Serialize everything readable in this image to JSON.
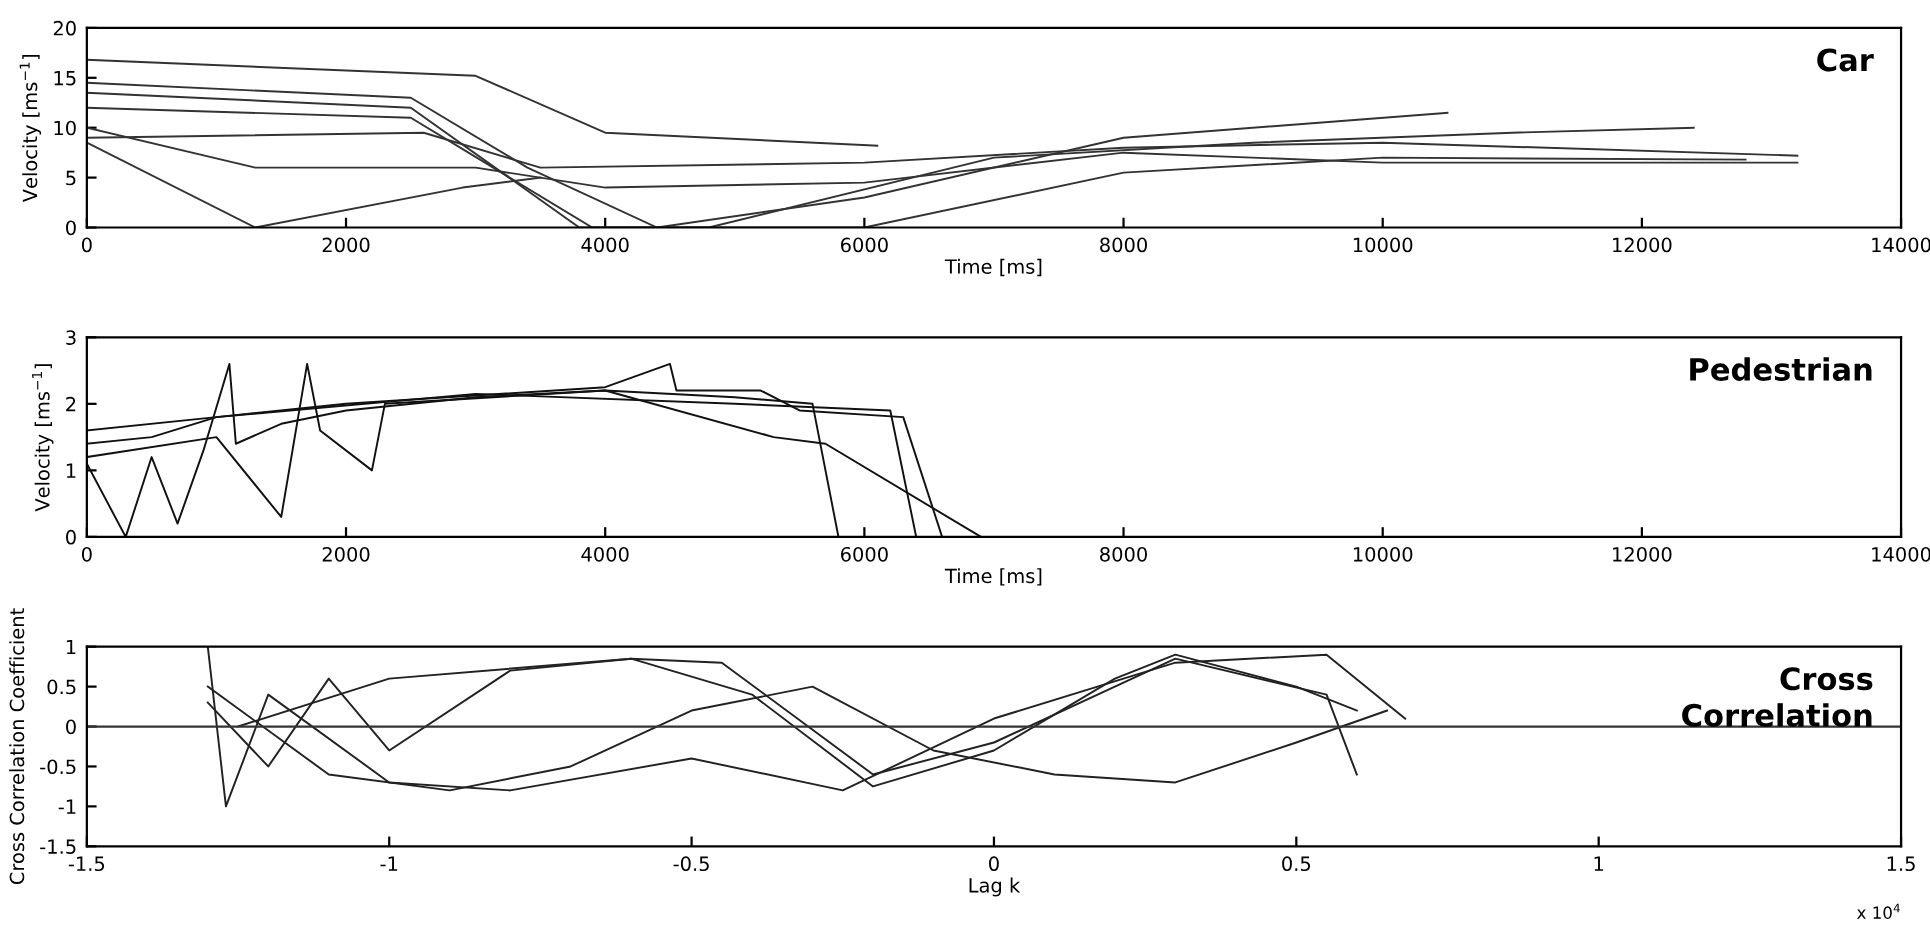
{
  "chart_data": [
    {
      "type": "line",
      "xlabel": "Time [ms]",
      "ylabel": "Velocity [ms$^{−1}$]",
      "annotations": [
        "Car"
      ],
      "xlim": [
        0,
        14000
      ],
      "ylim": [
        0,
        20
      ],
      "xticks": [
        0,
        2000,
        4000,
        6000,
        8000,
        10000,
        12000,
        14000
      ],
      "yticks": [
        0,
        5,
        10,
        15,
        20
      ],
      "grid": false,
      "legend": false,
      "marker": "none",
      "line_style": "solid",
      "series": [
        {
          "color": "#333333",
          "x": [
            0,
            3000,
            4000,
            6100
          ],
          "values": [
            16.8,
            15.2,
            9.5,
            8.2
          ]
        },
        {
          "color": "#333333",
          "x": [
            0,
            2500,
            3800,
            4800,
            7000,
            9000,
            11000,
            12400
          ],
          "values": [
            13.5,
            12,
            0,
            0,
            7,
            8.5,
            9.5,
            10
          ]
        },
        {
          "color": "#333333",
          "x": [
            0,
            2500,
            3900,
            6000,
            8000,
            10000,
            12800
          ],
          "values": [
            12,
            11,
            0,
            0,
            5.5,
            7,
            6.8
          ]
        },
        {
          "color": "#333333",
          "x": [
            0,
            1300,
            2900,
            3500
          ],
          "values": [
            8.5,
            0,
            4,
            5
          ]
        },
        {
          "color": "#333333",
          "x": [
            0,
            2600,
            3500,
            6000,
            8000,
            10000,
            13200
          ],
          "values": [
            9,
            9.5,
            6,
            6.5,
            8,
            8.5,
            7.2
          ]
        },
        {
          "color": "#333333",
          "x": [
            0,
            1300,
            3000,
            4000,
            6000,
            8000,
            10000,
            13200
          ],
          "values": [
            10,
            6,
            6,
            4,
            4.5,
            7.5,
            6.5,
            6.5
          ]
        },
        {
          "color": "#333333",
          "x": [
            0,
            2500,
            3400,
            4400,
            6000,
            8000,
            10500
          ],
          "values": [
            14.5,
            13,
            6,
            0,
            3,
            9,
            11.5
          ]
        }
      ]
    },
    {
      "type": "line",
      "xlabel": "Time [ms]",
      "ylabel": "Velocity [ms$^{−1}$]",
      "annotations": [
        "Pedestrian"
      ],
      "xlim": [
        0,
        14000
      ],
      "ylim": [
        0,
        3
      ],
      "xticks": [
        0,
        2000,
        4000,
        6000,
        8000,
        10000,
        12000,
        14000
      ],
      "yticks": [
        0,
        1,
        2,
        3
      ],
      "grid": false,
      "legend": false,
      "marker": "none",
      "line_style": "solid",
      "series": [
        {
          "color": "#111111",
          "x": [
            0,
            300,
            500,
            700,
            900,
            1100,
            1150,
            1500,
            2000,
            3000,
            4000,
            5000,
            5600,
            5800
          ],
          "values": [
            1.1,
            0,
            1.2,
            0.2,
            1.3,
            2.6,
            1.4,
            1.7,
            1.9,
            2.1,
            2.2,
            2.1,
            2.0,
            0
          ]
        },
        {
          "color": "#111111",
          "x": [
            0,
            500,
            1000,
            2000,
            4000,
            4500,
            4550,
            5200,
            5500,
            6300,
            6600
          ],
          "values": [
            1.4,
            1.5,
            1.8,
            2.0,
            2.25,
            2.6,
            2.2,
            2.2,
            1.9,
            1.8,
            0
          ]
        },
        {
          "color": "#111111",
          "x": [
            0,
            1000,
            1500,
            1700,
            1800,
            2200,
            2300,
            4000,
            5300,
            5700,
            6900
          ],
          "values": [
            1.2,
            1.5,
            0.3,
            2.6,
            1.6,
            1.0,
            2.0,
            2.2,
            1.5,
            1.4,
            0
          ]
        },
        {
          "color": "#111111",
          "x": [
            0,
            1000,
            3000,
            5000,
            6200,
            6400
          ],
          "values": [
            1.6,
            1.8,
            2.15,
            2.0,
            1.9,
            0
          ]
        }
      ]
    },
    {
      "type": "line",
      "xlabel": "Lag k",
      "ylabel": "Cross Correlation Coefficient",
      "annotations": [
        "Cross\nCorrelation",
        "x 10$^{4}$"
      ],
      "xlim": [
        -1.5,
        1.5
      ],
      "ylim": [
        -1.5,
        1
      ],
      "xticks": [
        -1.5,
        -1,
        -0.5,
        0,
        0.5,
        1,
        1.5
      ],
      "yticks": [
        -1.5,
        -1,
        -0.5,
        0,
        0.5,
        1
      ],
      "grid": false,
      "legend": false,
      "marker": "none",
      "line_style": "solid",
      "ref_lines": [
        {
          "axis": "y",
          "value": 0,
          "color": "#333333"
        }
      ],
      "series": [
        {
          "color": "#222222",
          "x": [
            -1.3,
            -1.2,
            -1.1,
            -1.0,
            -0.8,
            -0.6,
            -0.4,
            -0.2,
            0,
            0.2,
            0.3,
            0.5,
            0.6
          ],
          "values": [
            0.3,
            -0.5,
            0.6,
            -0.3,
            0.7,
            0.85,
            0.4,
            -0.75,
            -0.3,
            0.6,
            0.9,
            0.5,
            0.2
          ]
        },
        {
          "color": "#222222",
          "x": [
            -1.3,
            -1.1,
            -0.9,
            -0.7,
            -0.5,
            -0.3,
            -0.1,
            0.1,
            0.3,
            0.5,
            0.65
          ],
          "values": [
            0.5,
            -0.6,
            -0.8,
            -0.5,
            0.2,
            0.5,
            -0.3,
            -0.6,
            -0.7,
            -0.2,
            0.2
          ]
        },
        {
          "color": "#222222",
          "x": [
            -1.25,
            -1.0,
            -0.6,
            -0.45,
            -0.2,
            0,
            0.2,
            0.3,
            0.55,
            0.6
          ],
          "values": [
            0,
            0.6,
            0.85,
            0.8,
            -0.6,
            -0.2,
            0.5,
            0.85,
            0.4,
            -0.6
          ]
        },
        {
          "color": "#222222",
          "x": [
            -1.3,
            -1.27,
            -1.2,
            -1.0,
            -0.8,
            -0.5,
            -0.25,
            0,
            0.3,
            0.55,
            0.68
          ],
          "values": [
            1.0,
            -1.0,
            0.4,
            -0.7,
            -0.8,
            -0.4,
            -0.8,
            0.1,
            0.8,
            0.9,
            0.1
          ]
        }
      ]
    }
  ]
}
